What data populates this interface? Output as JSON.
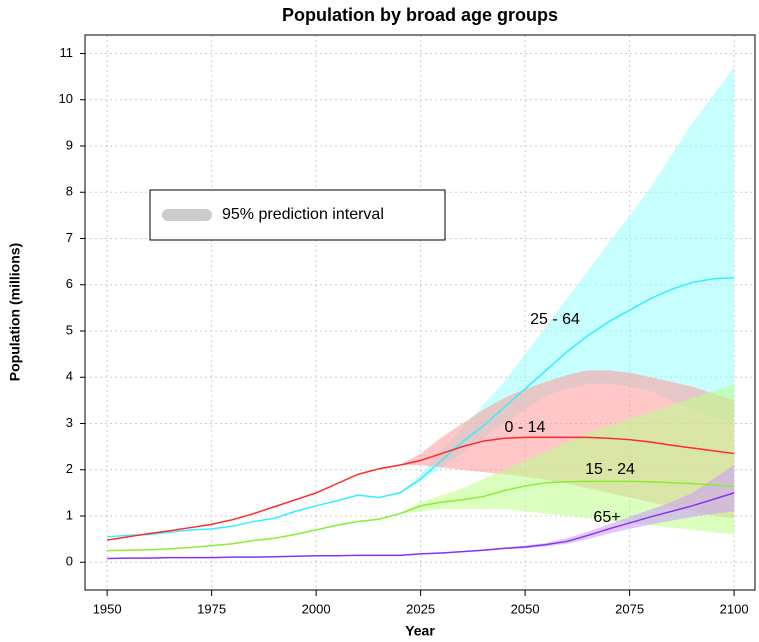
{
  "chart_data": {
    "type": "line",
    "title": "Population by broad age groups",
    "x_label": "Year",
    "y_label": "Population (millions)",
    "x": [
      1950,
      1955,
      1960,
      1965,
      1970,
      1975,
      1980,
      1985,
      1990,
      1995,
      2000,
      2005,
      2010,
      2015,
      2020,
      2025,
      2030,
      2035,
      2040,
      2045,
      2050,
      2055,
      2060,
      2065,
      2070,
      2075,
      2080,
      2085,
      2090,
      2095,
      2100
    ],
    "xlim": [
      1944.7,
      2105
    ],
    "xticks": [
      1950,
      1975,
      2000,
      2025,
      2050,
      2075,
      2100
    ],
    "ylim": [
      -0.6,
      11.4
    ],
    "yticks": [
      0,
      1,
      2,
      3,
      4,
      5,
      6,
      7,
      8,
      9,
      10,
      11
    ],
    "grid": true,
    "legend": {
      "label": "95% prediction interval",
      "color": "#cccccc"
    },
    "series": [
      {
        "name": "25 - 64",
        "color": "#33eeff",
        "band_color": "#99ffff",
        "values": [
          0.55,
          0.58,
          0.6,
          0.65,
          0.7,
          0.72,
          0.78,
          0.88,
          0.95,
          1.1,
          1.22,
          1.33,
          1.45,
          1.4,
          1.5,
          1.8,
          2.2,
          2.6,
          2.95,
          3.35,
          3.75,
          4.15,
          4.55,
          4.9,
          5.2,
          5.45,
          5.7,
          5.9,
          6.05,
          6.13,
          6.15
        ],
        "upper": [
          null,
          null,
          null,
          null,
          null,
          null,
          null,
          null,
          null,
          null,
          null,
          null,
          null,
          null,
          1.5,
          1.9,
          2.4,
          2.9,
          3.4,
          3.9,
          4.5,
          5.1,
          5.7,
          6.3,
          6.9,
          7.5,
          8.1,
          8.8,
          9.5,
          10.1,
          10.7
        ],
        "lower": [
          null,
          null,
          null,
          null,
          null,
          null,
          null,
          null,
          null,
          null,
          null,
          null,
          null,
          null,
          1.5,
          1.75,
          2.05,
          2.35,
          2.7,
          3.0,
          3.3,
          3.6,
          3.75,
          3.85,
          3.85,
          3.8,
          3.7,
          3.5,
          3.3,
          3.15,
          3.0
        ]
      },
      {
        "name": "0 - 14",
        "color": "#ff2a2a",
        "band_color": "#ff9999",
        "values": [
          0.48,
          0.55,
          0.62,
          0.68,
          0.75,
          0.82,
          0.92,
          1.05,
          1.2,
          1.35,
          1.5,
          1.7,
          1.9,
          2.02,
          2.1,
          2.2,
          2.35,
          2.5,
          2.62,
          2.68,
          2.7,
          2.7,
          2.7,
          2.7,
          2.68,
          2.65,
          2.6,
          2.53,
          2.47,
          2.41,
          2.35
        ],
        "upper": [
          null,
          null,
          null,
          null,
          null,
          null,
          null,
          null,
          null,
          null,
          null,
          null,
          null,
          null,
          2.1,
          2.35,
          2.7,
          3.0,
          3.3,
          3.55,
          3.75,
          3.9,
          4.05,
          4.15,
          4.15,
          4.1,
          4.0,
          3.9,
          3.8,
          3.65,
          3.5
        ],
        "lower": [
          null,
          null,
          null,
          null,
          null,
          null,
          null,
          null,
          null,
          null,
          null,
          null,
          null,
          null,
          2.1,
          2.1,
          2.05,
          2.0,
          1.95,
          1.9,
          1.85,
          1.78,
          1.7,
          1.6,
          1.5,
          1.4,
          1.3,
          1.2,
          1.1,
          1.0,
          0.95
        ]
      },
      {
        "name": "15 - 24",
        "color": "#88ee33",
        "band_color": "#bbff88",
        "values": [
          0.25,
          0.26,
          0.27,
          0.29,
          0.32,
          0.36,
          0.4,
          0.47,
          0.52,
          0.6,
          0.7,
          0.8,
          0.88,
          0.93,
          1.05,
          1.22,
          1.3,
          1.35,
          1.42,
          1.55,
          1.65,
          1.72,
          1.74,
          1.75,
          1.75,
          1.75,
          1.74,
          1.72,
          1.7,
          1.67,
          1.64
        ],
        "upper": [
          null,
          null,
          null,
          null,
          null,
          null,
          null,
          null,
          null,
          null,
          null,
          null,
          null,
          null,
          1.05,
          1.3,
          1.45,
          1.6,
          1.8,
          2.0,
          2.2,
          2.4,
          2.6,
          2.8,
          2.95,
          3.1,
          3.25,
          3.4,
          3.55,
          3.7,
          3.85
        ],
        "lower": [
          null,
          null,
          null,
          null,
          null,
          null,
          null,
          null,
          null,
          null,
          null,
          null,
          null,
          null,
          1.05,
          1.1,
          1.15,
          1.15,
          1.15,
          1.15,
          1.1,
          1.05,
          1.0,
          0.95,
          0.9,
          0.85,
          0.8,
          0.75,
          0.7,
          0.65,
          0.6
        ]
      },
      {
        "name": "65+",
        "color": "#8833ee",
        "band_color": "#cc99ff",
        "values": [
          0.08,
          0.09,
          0.09,
          0.1,
          0.1,
          0.1,
          0.11,
          0.11,
          0.12,
          0.13,
          0.14,
          0.14,
          0.15,
          0.15,
          0.15,
          0.18,
          0.2,
          0.23,
          0.26,
          0.3,
          0.33,
          0.38,
          0.45,
          0.58,
          0.72,
          0.85,
          0.98,
          1.1,
          1.22,
          1.36,
          1.5
        ],
        "upper": [
          null,
          null,
          null,
          null,
          null,
          null,
          null,
          null,
          null,
          null,
          null,
          null,
          null,
          null,
          0.15,
          0.18,
          0.21,
          0.24,
          0.28,
          0.32,
          0.36,
          0.42,
          0.52,
          0.66,
          0.82,
          0.98,
          1.14,
          1.3,
          1.5,
          1.8,
          2.1
        ],
        "lower": [
          null,
          null,
          null,
          null,
          null,
          null,
          null,
          null,
          null,
          null,
          null,
          null,
          null,
          null,
          0.15,
          0.18,
          0.2,
          0.23,
          0.25,
          0.28,
          0.3,
          0.34,
          0.4,
          0.5,
          0.62,
          0.72,
          0.82,
          0.9,
          0.98,
          1.05,
          1.1
        ]
      }
    ]
  }
}
